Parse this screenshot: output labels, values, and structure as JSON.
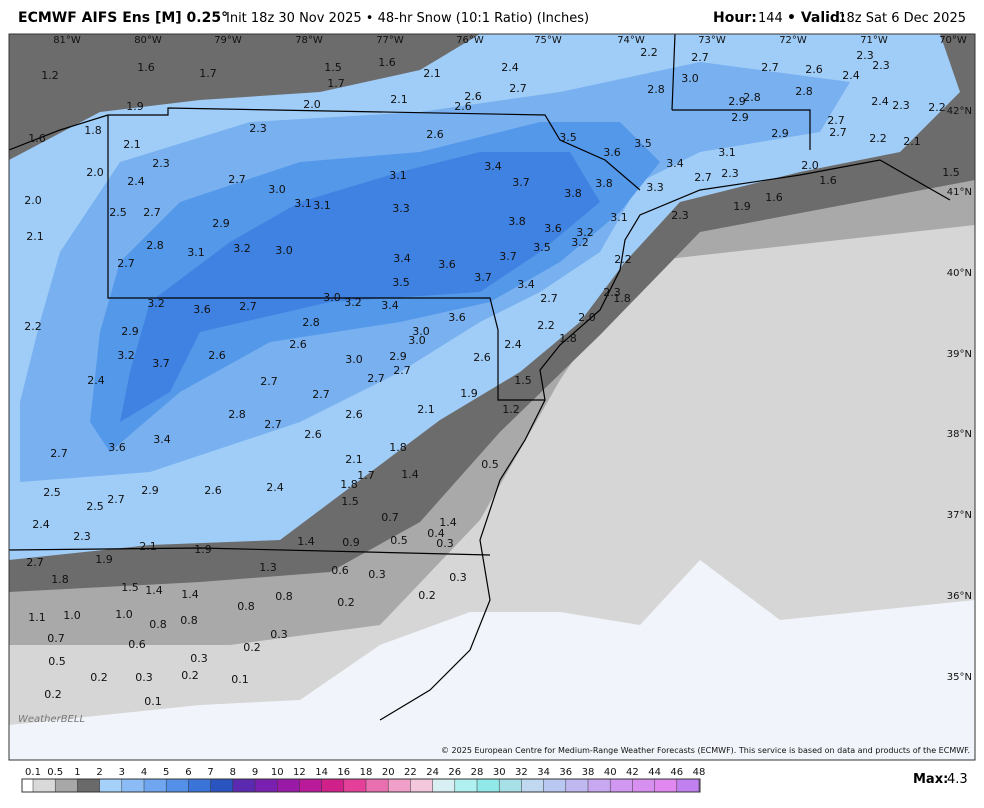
{
  "header": {
    "title": "ECMWF AIFS Ens [M] 0.25°",
    "subtitle": "Init 18z 30 Nov 2025 • 48-hr Snow (10:1 Ratio) (Inches)",
    "hour_label": "Hour:",
    "hour": 144,
    "valid_label": "• Valid:",
    "valid": "18z Sat 6 Dec 2025"
  },
  "map": {
    "longitudes": [
      "81°W",
      "80°W",
      "79°W",
      "78°W",
      "77°W",
      "76°W",
      "75°W",
      "74°W",
      "73°W",
      "72°W",
      "71°W",
      "70°W"
    ],
    "latitudes": [
      "42°N",
      "41°N",
      "40°N",
      "39°N",
      "38°N",
      "37°N",
      "36°N",
      "35°N"
    ],
    "contour_labels": [
      "1.2",
      "1.6",
      "1.7",
      "1.5",
      "1.6",
      "1.7",
      "2.1",
      "2.4",
      "2.2",
      "2.7",
      "2.7",
      "2.6",
      "2.3",
      "2.3",
      "2.4",
      "3.0",
      "2.7",
      "2.8",
      "2.8",
      "1.9",
      "2.0",
      "2.1",
      "2.6",
      "2.6",
      "2.9",
      "2.8",
      "2.4",
      "2.3",
      "2.2",
      "1.8",
      "1.6",
      "2.3",
      "2.6",
      "3.5",
      "2.9",
      "2.9",
      "2.7",
      "2.7",
      "2.2",
      "2.1",
      "2.1",
      "3.6",
      "3.5",
      "3.1",
      "2.3",
      "2.0",
      "3.4",
      "3.4",
      "2.0",
      "1.5",
      "2.4",
      "2.7",
      "3.1",
      "3.7",
      "3.8",
      "3.3",
      "2.7",
      "2.3",
      "1.6",
      "2.0",
      "3.0",
      "3.1",
      "3.1",
      "3.8",
      "1.6",
      "1.9",
      "2.5",
      "2.7",
      "3.3",
      "3.1",
      "2.3",
      "2.1",
      "2.9",
      "3.8",
      "3.6",
      "3.2",
      "2.8",
      "3.2",
      "3.0",
      "3.2",
      "3.5",
      "3.1",
      "2.7",
      "3.4",
      "3.7",
      "3.6",
      "2.2",
      "3.7",
      "3.5",
      "3.4",
      "2.3",
      "1.8",
      "3.0",
      "3.2",
      "3.4",
      "2.7",
      "3.2",
      "3.6",
      "2.7",
      "3.6",
      "2.0",
      "2.2",
      "2.9",
      "2.8",
      "3.0",
      "3.0",
      "2.2",
      "1.8",
      "2.6",
      "2.4",
      "3.2",
      "3.7",
      "2.6",
      "3.0",
      "2.9",
      "2.6",
      "2.7",
      "2.7",
      "2.4",
      "2.7",
      "1.5",
      "2.7",
      "1.9",
      "2.1",
      "1.2",
      "2.8",
      "2.7",
      "2.6",
      "2.6",
      "3.4",
      "3.6",
      "2.7",
      "1.8",
      "2.1",
      "0.5",
      "1.7",
      "1.4",
      "1.8",
      "2.4",
      "2.6",
      "2.9",
      "2.5",
      "2.7",
      "2.5",
      "1.5",
      "0.7",
      "1.4",
      "2.4",
      "0.4",
      "2.3",
      "1.4",
      "0.9",
      "0.5",
      "0.3",
      "2.1",
      "1.9",
      "1.9",
      "2.7",
      "1.3",
      "0.6",
      "0.3",
      "0.3",
      "1.8",
      "1.5",
      "1.4",
      "1.4",
      "0.8",
      "0.2",
      "0.2",
      "0.8",
      "1.1",
      "1.0",
      "1.0",
      "0.8",
      "0.8",
      "0.3",
      "0.7",
      "0.6",
      "0.2",
      "0.5",
      "0.3",
      "0.2",
      "0.3",
      "0.2",
      "0.1",
      "0.2",
      "0.1"
    ],
    "watermark": "WeatherBELL",
    "copyright": "© 2025 European Centre for Medium-Range Weather Forecasts (ECMWF). This service is based on data and products of the ECMWF."
  },
  "legend": {
    "ticks": [
      0.1,
      0.5,
      1,
      2,
      3,
      4,
      5,
      6,
      7,
      8,
      9,
      10,
      12,
      14,
      16,
      18,
      20,
      22,
      24,
      26,
      28,
      30,
      32,
      34,
      36,
      38,
      40,
      42,
      44,
      46,
      48
    ],
    "colors": [
      "#d9d9d9",
      "#a8a8a8",
      "#6a6a6a",
      "#a5d0fa",
      "#8bbcf5",
      "#6fa6ef",
      "#5590e8",
      "#3b74d8",
      "#2a55c0",
      "#5b2ab0",
      "#7a20b0",
      "#9a1aa8",
      "#b81a9a",
      "#d0208a",
      "#e4409a",
      "#e870b0",
      "#f0a0c8",
      "#f4c8dc",
      "#d8f0f4",
      "#b0f0f0",
      "#90e8e8",
      "#a8e0e8",
      "#c0d8f0",
      "#b8c8f0",
      "#c0b8f0",
      "#c8a8f0",
      "#d098f0",
      "#d890f0",
      "#e088f0",
      "#c080f0"
    ],
    "max_label": "Max:",
    "max": 4.3
  }
}
